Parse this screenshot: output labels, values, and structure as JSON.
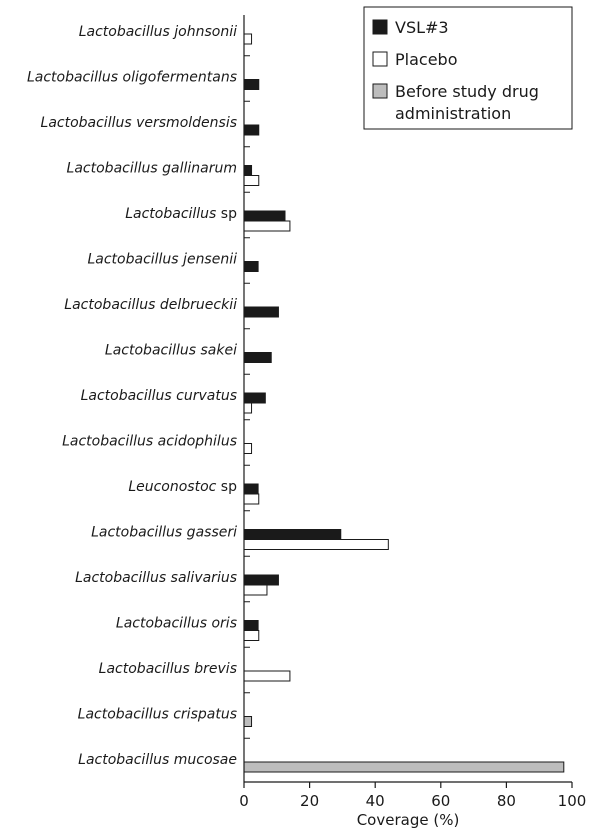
{
  "chart_data": {
    "type": "bar",
    "orientation": "horizontal",
    "xlabel": "Coverage (%)",
    "xlim": [
      0,
      100
    ],
    "xticks": [
      "0",
      "20",
      "40",
      "60",
      "80",
      "100"
    ],
    "legend_position": "top-right",
    "categories": [
      {
        "genus": "Lactobacillus",
        "species": "johnsonii"
      },
      {
        "genus": "Lactobacillus",
        "species": "oligofermentans"
      },
      {
        "genus": "Lactobacillus",
        "species": "versmoldensis"
      },
      {
        "genus": "Lactobacillus",
        "species": "gallinarum"
      },
      {
        "genus": "Lactobacillus",
        "species": "sp"
      },
      {
        "genus": "Lactobacillus",
        "species": "jensenii"
      },
      {
        "genus": "Lactobacillus",
        "species": "delbrueckii"
      },
      {
        "genus": "Lactobacillus",
        "species": "sakei"
      },
      {
        "genus": "Lactobacillus",
        "species": "curvatus"
      },
      {
        "genus": "Lactobacillus",
        "species": "acidophilus"
      },
      {
        "genus": "Leuconostoc",
        "species": "sp"
      },
      {
        "genus": "Lactobacillus",
        "species": "gasseri"
      },
      {
        "genus": "Lactobacillus",
        "species": "salivarius"
      },
      {
        "genus": "Lactobacillus",
        "species": "oris"
      },
      {
        "genus": "Lactobacillus",
        "species": "brevis"
      },
      {
        "genus": "Lactobacillus",
        "species": "crispatus"
      },
      {
        "genus": "Lactobacillus",
        "species": "mucosae"
      }
    ],
    "series": [
      {
        "name": "VSL#3",
        "color": "#1a1a1a",
        "values": [
          0,
          4.5,
          4.5,
          2.3,
          12.5,
          4.3,
          10.5,
          8.3,
          6.5,
          0,
          4.3,
          29.5,
          10.5,
          4.3,
          0,
          0,
          0
        ]
      },
      {
        "name": "Placebo",
        "color": "#ffffff",
        "values": [
          2.3,
          0,
          0,
          4.5,
          14,
          0,
          0,
          0,
          2.3,
          2.3,
          4.5,
          44,
          7,
          4.5,
          14,
          0,
          0
        ]
      },
      {
        "name": "Before study drug administration",
        "color": "#bdbdbd",
        "values": [
          0,
          0,
          0,
          0,
          0,
          0,
          0,
          0,
          0,
          0,
          0,
          0,
          0,
          0,
          0,
          2.3,
          97.5
        ]
      }
    ],
    "legend": {
      "entries": [
        {
          "lines": [
            "VSL#3"
          ]
        },
        {
          "lines": [
            "Placebo"
          ]
        },
        {
          "lines": [
            "Before study drug",
            "administration"
          ]
        }
      ]
    }
  }
}
